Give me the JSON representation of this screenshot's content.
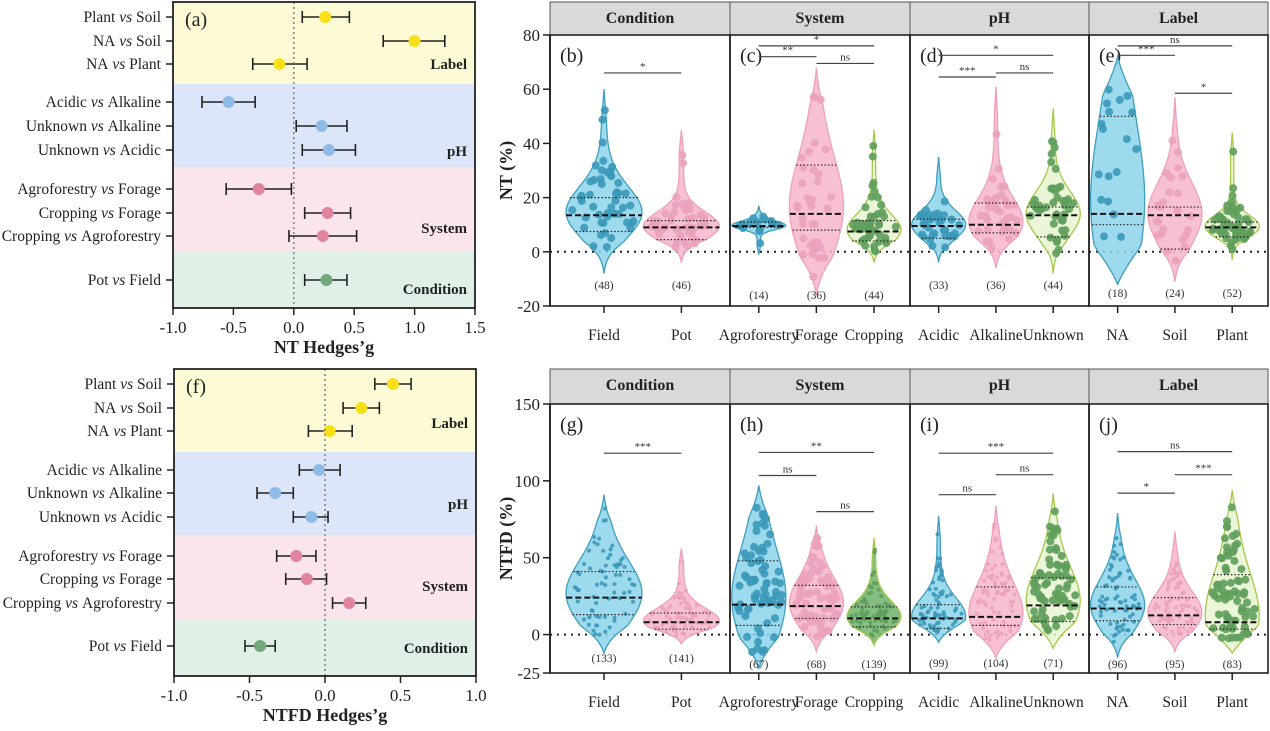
{
  "chart_data": [
    {
      "id": "a",
      "type": "forest",
      "panel_label": "(a)",
      "xlabel": "NT Hedges’g",
      "xlim": [
        -1.0,
        1.5
      ],
      "xticks": [
        "-1.0",
        "-0.5",
        "0.0",
        "0.5",
        "1.0",
        "1.5"
      ],
      "xtick_values": [
        -1.0,
        -0.5,
        0.0,
        0.5,
        1.0,
        1.5
      ],
      "groups": [
        {
          "name": "Label",
          "color": "#fdfbd6",
          "point_color": "#f7e01a",
          "rows": [
            {
              "label": [
                "Plant",
                " vs ",
                "Soil"
              ],
              "g": 0.26,
              "lo": 0.07,
              "hi": 0.46
            },
            {
              "label": [
                "NA",
                " vs ",
                "Soil"
              ],
              "g": 1.0,
              "lo": 0.74,
              "hi": 1.25
            },
            {
              "label": [
                "NA",
                " vs ",
                "Plant"
              ],
              "g": -0.12,
              "lo": -0.34,
              "hi": 0.11
            }
          ]
        },
        {
          "name": "pH",
          "color": "#dde6f8",
          "point_color": "#8fbbe6",
          "rows": [
            {
              "label": [
                "Acidic",
                " vs ",
                "Alkaline"
              ],
              "g": -0.54,
              "lo": -0.76,
              "hi": -0.32
            },
            {
              "label": [
                "Unknown",
                " vs ",
                "Alkaline"
              ],
              "g": 0.23,
              "lo": 0.02,
              "hi": 0.44
            },
            {
              "label": [
                "Unknown",
                " vs ",
                "Acidic"
              ],
              "g": 0.29,
              "lo": 0.07,
              "hi": 0.51
            }
          ]
        },
        {
          "name": "System",
          "color": "#fbe5ec",
          "point_color": "#e0849f",
          "rows": [
            {
              "label": [
                "Agroforestry",
                " vs ",
                "Forage"
              ],
              "g": -0.29,
              "lo": -0.56,
              "hi": -0.02
            },
            {
              "label": [
                "Cropping",
                " vs ",
                "Forage"
              ],
              "g": 0.28,
              "lo": 0.09,
              "hi": 0.47
            },
            {
              "label": [
                "Cropping",
                " vs ",
                "Agroforestry"
              ],
              "g": 0.24,
              "lo": -0.04,
              "hi": 0.52
            }
          ]
        },
        {
          "name": "Condition",
          "color": "#e1f0e6",
          "point_color": "#72a87c",
          "rows": [
            {
              "label": [
                "Pot",
                " vs ",
                "Field"
              ],
              "g": 0.27,
              "lo": 0.09,
              "hi": 0.44
            }
          ]
        }
      ]
    },
    {
      "id": "f",
      "type": "forest",
      "panel_label": "(f)",
      "xlabel": "NTFD Hedges’g",
      "xlim": [
        -1.0,
        1.0
      ],
      "xticks": [
        "-1.0",
        "-0.5",
        "0.0",
        "0.5",
        "1.0"
      ],
      "xtick_values": [
        -1.0,
        -0.5,
        0.0,
        0.5,
        1.0
      ],
      "groups": [
        {
          "name": "Label",
          "color": "#fdfbd6",
          "point_color": "#f7e01a",
          "rows": [
            {
              "label": [
                "Plant",
                " vs ",
                "Soil"
              ],
              "g": 0.45,
              "lo": 0.33,
              "hi": 0.57
            },
            {
              "label": [
                "NA",
                " vs ",
                "Soil"
              ],
              "g": 0.24,
              "lo": 0.12,
              "hi": 0.36
            },
            {
              "label": [
                "NA",
                " vs ",
                "Plant"
              ],
              "g": 0.03,
              "lo": -0.11,
              "hi": 0.18
            }
          ]
        },
        {
          "name": "pH",
          "color": "#dde6f8",
          "point_color": "#8fbbe6",
          "rows": [
            {
              "label": [
                "Acidic",
                " vs ",
                "Alkaline"
              ],
              "g": -0.04,
              "lo": -0.17,
              "hi": 0.1
            },
            {
              "label": [
                "Unknown",
                " vs ",
                "Alkaline"
              ],
              "g": -0.33,
              "lo": -0.45,
              "hi": -0.21
            },
            {
              "label": [
                "Unknown",
                " vs ",
                "Acidic"
              ],
              "g": -0.09,
              "lo": -0.21,
              "hi": 0.02
            }
          ]
        },
        {
          "name": "System",
          "color": "#fbe5ec",
          "point_color": "#e0849f",
          "rows": [
            {
              "label": [
                "Agroforestry",
                " vs ",
                "Forage"
              ],
              "g": -0.19,
              "lo": -0.32,
              "hi": -0.06
            },
            {
              "label": [
                "Cropping",
                " vs ",
                "Forage"
              ],
              "g": -0.12,
              "lo": -0.26,
              "hi": 0.01
            },
            {
              "label": [
                "Cropping",
                " vs ",
                "Agroforestry"
              ],
              "g": 0.16,
              "lo": 0.05,
              "hi": 0.27
            }
          ]
        },
        {
          "name": "Condition",
          "color": "#e1f0e6",
          "point_color": "#72a87c",
          "rows": [
            {
              "label": [
                "Pot",
                " vs ",
                "Field"
              ],
              "g": -0.43,
              "lo": -0.53,
              "hi": -0.33
            }
          ]
        }
      ]
    },
    {
      "id": "NT",
      "type": "violin",
      "ylabel": "NT (%)",
      "ylim": [
        -20,
        80
      ],
      "yticks": [
        -20,
        0,
        20,
        40,
        60,
        80
      ],
      "facets": [
        {
          "header": "Condition",
          "panel_label": "(b)",
          "categories": [
            "Field",
            "Pot"
          ],
          "n": [
            "(48)",
            "(46)"
          ],
          "colors": [
            "#8dd3ea",
            "#f7b6cb"
          ],
          "median": [
            13.5,
            9
          ],
          "q1": [
            7.5,
            4.5
          ],
          "q3": [
            20,
            11.5
          ],
          "range": [
            [
              -8,
              60
            ],
            [
              -4,
              45
            ]
          ],
          "sig": [
            {
              "from": 0,
              "to": 1,
              "text": "*",
              "y": 66
            }
          ]
        },
        {
          "header": "System",
          "panel_label": "(c)",
          "categories": [
            "Agroforestry",
            "Forage",
            "Cropping"
          ],
          "n": [
            "(14)",
            "(36)",
            "(44)"
          ],
          "colors": [
            "#8dd3ea",
            "#f7b6cb",
            "#e8f3d0"
          ],
          "median": [
            9.5,
            14,
            7.5
          ],
          "q1": [
            9,
            8,
            4
          ],
          "q3": [
            11,
            32,
            11.5
          ],
          "range": [
            [
              -1,
              17
            ],
            [
              -16,
              68
            ],
            [
              -4,
              45
            ]
          ],
          "sig": [
            {
              "from": 0,
              "to": 2,
              "text": "*",
              "y": 76
            },
            {
              "from": 0,
              "to": 1,
              "text": "**",
              "y": 72
            },
            {
              "from": 1,
              "to": 2,
              "text": "ns",
              "y": 69.5
            }
          ]
        },
        {
          "header": "pH",
          "panel_label": "(d)",
          "categories": [
            "Acidic",
            "Alkaline",
            "Unknown"
          ],
          "n": [
            "(33)",
            "(36)",
            "(44)"
          ],
          "colors": [
            "#8dd3ea",
            "#f7b6cb",
            "#e8f3d0"
          ],
          "median": [
            9.5,
            10,
            13.5
          ],
          "q1": [
            5,
            7,
            5.5
          ],
          "q3": [
            12,
            18,
            16.5
          ],
          "range": [
            [
              -4,
              35
            ],
            [
              -6,
              61
            ],
            [
              -8,
              53
            ]
          ],
          "sig": [
            {
              "from": 0,
              "to": 2,
              "text": "*",
              "y": 72.5
            },
            {
              "from": 0,
              "to": 1,
              "text": "***",
              "y": 64.5
            },
            {
              "from": 1,
              "to": 2,
              "text": "ns",
              "y": 66
            }
          ]
        },
        {
          "header": "Label",
          "panel_label": "(e)",
          "categories": [
            "NA",
            "Soil",
            "Plant"
          ],
          "n": [
            "(18)",
            "(24)",
            "(52)"
          ],
          "colors": [
            "#8dd3ea",
            "#f7b6cb",
            "#e8f3d0"
          ],
          "median": [
            14,
            13.5,
            9
          ],
          "q1": [
            10,
            1,
            5.5
          ],
          "q3": [
            50,
            16.5,
            11
          ],
          "range": [
            [
              -12,
              72
            ],
            [
              -11,
              57
            ],
            [
              -3,
              44
            ]
          ],
          "sig": [
            {
              "from": 0,
              "to": 2,
              "text": "ns",
              "y": 76
            },
            {
              "from": 0,
              "to": 1,
              "text": "***",
              "y": 72.5
            },
            {
              "from": 1,
              "to": 2,
              "text": "*",
              "y": 58.5
            }
          ]
        }
      ]
    },
    {
      "id": "NTFD",
      "type": "violin",
      "ylabel": "NTFD (%)",
      "ylim": [
        -25,
        150
      ],
      "yticks": [
        -25,
        0,
        50,
        100,
        150
      ],
      "facets": [
        {
          "header": "Condition",
          "panel_label": "(g)",
          "categories": [
            "Field",
            "Pot"
          ],
          "n": [
            "(133)",
            "(141)"
          ],
          "colors": [
            "#8dd3ea",
            "#f7b6cb"
          ],
          "median": [
            24,
            8
          ],
          "q1": [
            13,
            3.5
          ],
          "q3": [
            41,
            14
          ],
          "range": [
            [
              -12,
              91
            ],
            [
              -6,
              56
            ]
          ],
          "sig": [
            {
              "from": 0,
              "to": 1,
              "text": "***",
              "y": 118
            }
          ]
        },
        {
          "header": "System",
          "panel_label": "(h)",
          "categories": [
            "Agroforestry",
            "Forage",
            "Cropping"
          ],
          "n": [
            "(67)",
            "(68)",
            "(139)"
          ],
          "colors": [
            "#8dd3ea",
            "#f7b6cb",
            "#6fb36a"
          ],
          "median": [
            19.5,
            18.5,
            10.5
          ],
          "q1": [
            6,
            10.5,
            5
          ],
          "q3": [
            48,
            32,
            18
          ],
          "range": [
            [
              -22,
              97
            ],
            [
              -11,
              71
            ],
            [
              -7,
              63
            ]
          ],
          "sig": [
            {
              "from": 0,
              "to": 2,
              "text": "**",
              "y": 118.5
            },
            {
              "from": 0,
              "to": 1,
              "text": "ns",
              "y": 103.5
            },
            {
              "from": 1,
              "to": 2,
              "text": "ns",
              "y": 80
            }
          ]
        },
        {
          "header": "pH",
          "panel_label": "(i)",
          "categories": [
            "Acidic",
            "Alkaline",
            "Unknown"
          ],
          "n": [
            "(99)",
            "(104)",
            "(71)"
          ],
          "colors": [
            "#8dd3ea",
            "#f7b6cb",
            "#e8f3d0"
          ],
          "median": [
            10.5,
            11.5,
            19
          ],
          "q1": [
            4,
            6,
            8.5
          ],
          "q3": [
            19.5,
            31,
            37
          ]
        },
        {
          "header": "Label",
          "panel_label": "(j)",
          "categories": [
            "NA",
            "Soil",
            "Plant"
          ],
          "n": [
            "(96)",
            "(95)",
            "(83)"
          ],
          "colors": [
            "#8dd3ea",
            "#f7b6cb",
            "#e8f3d0"
          ],
          "median": [
            17,
            12.5,
            8
          ],
          "q1": [
            9,
            6.5,
            3.5
          ],
          "q3": [
            31,
            24,
            39
          ]
        }
      ]
    }
  ]
}
